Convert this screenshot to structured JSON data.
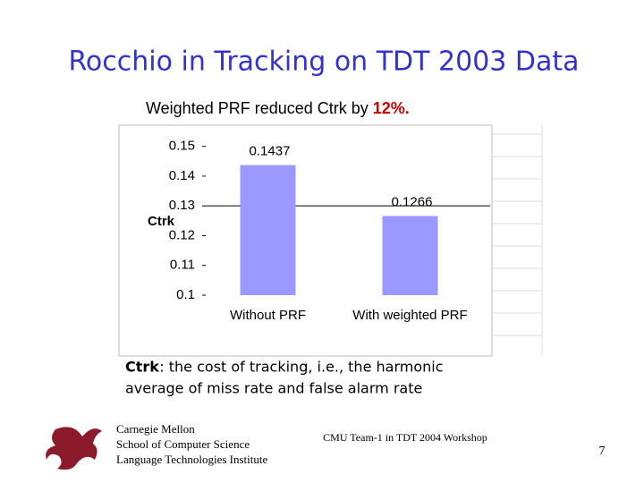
{
  "slide": {
    "title": "Rocchio in Tracking on TDT 2003 Data",
    "subtitle": "Weighted PRF reduced Ctrk by",
    "subtitle_highlight": "12%.",
    "caption_term": "Ctrk",
    "caption_line1": ": the cost of tracking, i.e., the harmonic",
    "caption_line2": "average of miss rate and false alarm rate",
    "footer_left": [
      "Carnegie Mellon",
      "School of Computer Science",
      "Language Technologies Institute"
    ],
    "footer_center": "CMU Team-1 in TDT 2004 Workshop",
    "page_number": "7"
  },
  "chart_data": {
    "type": "bar",
    "ylabel": "Ctrk",
    "categories": [
      "Without PRF",
      "With weighted PRF"
    ],
    "values": [
      0.1437,
      0.1266
    ],
    "color": "#9999ff",
    "ylim": [
      0.1,
      0.155
    ],
    "yticks": [
      0.1,
      0.11,
      0.12,
      0.13,
      0.14,
      0.15
    ],
    "hline": 0.13
  }
}
